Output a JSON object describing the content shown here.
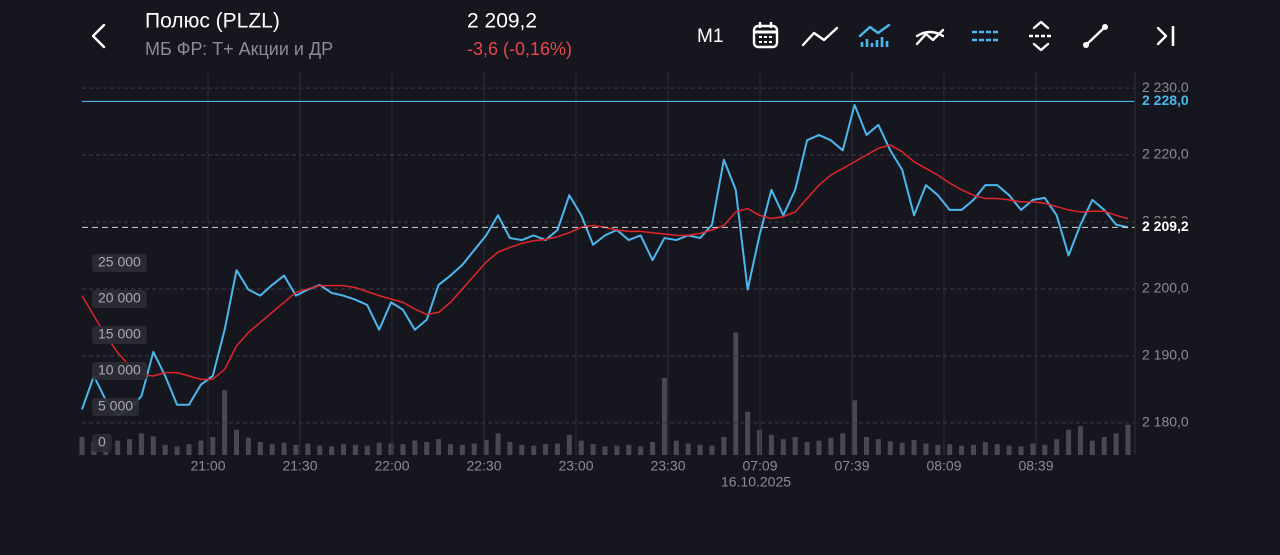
{
  "chart_data": {
    "type": "line",
    "title": "Полюс (PLZL)",
    "subtitle": "МБ ФР: Т+ Акции и ДР",
    "change_label": "-3,6 (-0,16%)",
    "timeframe": "M1",
    "date_annotation": "16.10.2025",
    "last_price": {
      "value": 2209.2,
      "label": "2 209,2"
    },
    "levels": [
      {
        "value": 2228.0,
        "label": "2 228,0",
        "color": "#4cb7ee"
      }
    ],
    "xlim": [
      0,
      88
    ],
    "xticks": [
      {
        "value": 10.6,
        "label": "21:00"
      },
      {
        "value": 18.34,
        "label": "21:30"
      },
      {
        "value": 26.08,
        "label": "22:00"
      },
      {
        "value": 33.82,
        "label": "22:30"
      },
      {
        "value": 41.56,
        "label": "23:00"
      },
      {
        "value": 49.3,
        "label": "23:30"
      },
      {
        "value": 57.04,
        "label": "07:09"
      },
      {
        "value": 64.78,
        "label": "07:39"
      },
      {
        "value": 72.52,
        "label": "08:09"
      },
      {
        "value": 80.26,
        "label": "08:39"
      }
    ],
    "ylim": [
      2175.2,
      2232.4
    ],
    "yticks": [
      {
        "value": 2180,
        "label": "2 180,0"
      },
      {
        "value": 2190,
        "label": "2 190,0"
      },
      {
        "value": 2200,
        "label": "2 200,0"
      },
      {
        "value": 2210,
        "label": "2 210,0"
      },
      {
        "value": 2220,
        "label": "2 220,0"
      },
      {
        "value": 2230,
        "label": "2 230,0"
      }
    ],
    "y2lim": [
      0,
      53200
    ],
    "y2ticks": [
      0,
      {
        "value": 5000,
        "label": "5 000"
      },
      {
        "value": 10000,
        "label": "10 000"
      },
      {
        "value": 15000,
        "label": "15 000"
      },
      {
        "value": 20000,
        "label": "20 000"
      },
      {
        "value": 25000,
        "label": "25 000"
      }
    ],
    "grid": true,
    "series": [
      {
        "color": "#4cb7ee",
        "kind": "line",
        "values": [
          2182,
          2187,
          2183.4,
          2181.2,
          2182,
          2184,
          2190.6,
          2187,
          2182.7,
          2182.7,
          2185.7,
          2187,
          2193.9,
          2202.8,
          2199.9,
          2199,
          2200.6,
          2202,
          2199,
          2199.9,
          2200.6,
          2199.4,
          2199,
          2198.4,
          2197.6,
          2193.9,
          2198,
          2196.9,
          2193.9,
          2195.4,
          2200.6,
          2202,
          2203.6,
          2205.8,
          2208,
          2211,
          2207.6,
          2207.3,
          2208,
          2207.3,
          2208.8,
          2214,
          2211,
          2206.6,
          2208,
          2208.8,
          2207.3,
          2208,
          2204.3,
          2207.6,
          2207.3,
          2208,
          2207.6,
          2209.6,
          2219.3,
          2214.8,
          2199.9,
          2208,
          2214.8,
          2211,
          2214.8,
          2222.2,
          2223,
          2222.2,
          2220.7,
          2227.5,
          2223,
          2224.5,
          2220.7,
          2217.8,
          2211,
          2215.5,
          2214,
          2211.8,
          2211.8,
          2213.3,
          2215.5,
          2215.5,
          2214,
          2211.8,
          2213.3,
          2213.6,
          2211,
          2205,
          2209.6,
          2213.3,
          2211.8,
          2209.6,
          2209.2
        ]
      },
      {
        "color": "#e0262c",
        "kind": "line",
        "values": [
          2199,
          2196,
          2193,
          2190.5,
          2188.5,
          2187.2,
          2187,
          2187.5,
          2187.5,
          2187,
          2186.5,
          2186.5,
          2188,
          2191.5,
          2193.5,
          2195,
          2196.5,
          2198,
          2199.5,
          2200,
          2200.5,
          2200.5,
          2200.5,
          2200.2,
          2199.6,
          2199,
          2198.5,
          2198,
          2197,
          2196.2,
          2196.5,
          2198,
          2200,
          2202,
          2204,
          2205.5,
          2206.2,
          2206.8,
          2207.2,
          2207.4,
          2207.8,
          2208.4,
          2209.2,
          2209.5,
          2209.2,
          2208.8,
          2208.6,
          2208.6,
          2208.4,
          2208.2,
          2208,
          2208,
          2208.3,
          2208.8,
          2209.5,
          2211.5,
          2212,
          2211,
          2210.5,
          2210.8,
          2211.5,
          2213.5,
          2215.5,
          2217,
          2218,
          2219,
          2220,
          2221,
          2221.5,
          2220.5,
          2219,
          2218,
          2217,
          2215.8,
          2214.8,
          2214,
          2213.5,
          2213.5,
          2213.3,
          2213,
          2213,
          2212.8,
          2212.3,
          2211.8,
          2211.5,
          2211.6,
          2211.6,
          2211,
          2210.5
        ]
      },
      {
        "color": "#5a5b63",
        "kind": "bar",
        "axis": "y2",
        "values": [
          2500,
          1800,
          1500,
          2000,
          2200,
          3000,
          2600,
          1400,
          1200,
          1500,
          2000,
          2500,
          9000,
          3500,
          2400,
          1800,
          1500,
          1700,
          1400,
          1600,
          1300,
          1200,
          1500,
          1400,
          1300,
          1700,
          1600,
          1500,
          2000,
          1800,
          2200,
          1500,
          1400,
          1600,
          2100,
          3000,
          1800,
          1400,
          1300,
          1500,
          1600,
          2800,
          2000,
          1500,
          1200,
          1300,
          1400,
          1200,
          1800,
          10700,
          2000,
          1600,
          1400,
          1300,
          2500,
          17000,
          6000,
          3500,
          2800,
          2200,
          2500,
          1800,
          2000,
          2400,
          3000,
          7600,
          2500,
          2200,
          1900,
          1700,
          2100,
          1600,
          1400,
          1500,
          1300,
          1400,
          1800,
          1500,
          1300,
          1200,
          1600,
          1400,
          2200,
          3500,
          4000,
          2000,
          2500,
          3000,
          4200
        ]
      }
    ]
  }
}
